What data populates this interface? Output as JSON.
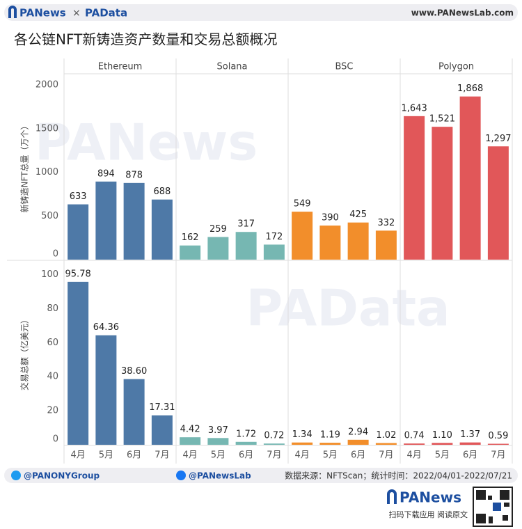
{
  "header": {
    "brand_left": "PANews",
    "times": "×",
    "brand_right": "PAData",
    "url": "www.PANewsLab.com"
  },
  "chart_data": {
    "type": "faceted-bar",
    "title": "各公链NFT新铸造资产数量和交易总额概况",
    "categories": [
      "4月",
      "5月",
      "6月",
      "7月"
    ],
    "facets": [
      {
        "name": "Ethereum",
        "color": "#4e79a7"
      },
      {
        "name": "Solana",
        "color": "#76b7b2"
      },
      {
        "name": "BSC",
        "color": "#f28e2b"
      },
      {
        "name": "Polygon",
        "color": "#e15759"
      }
    ],
    "rows": [
      {
        "y_label": "新铸造NFT总量（万个）",
        "ylim": [
          0,
          2120
        ],
        "yticks": [
          0,
          500,
          1000,
          1500,
          2000
        ],
        "values": [
          [
            633,
            894,
            878,
            688
          ],
          [
            162,
            259,
            317,
            172
          ],
          [
            549,
            390,
            425,
            332
          ],
          [
            1643,
            1521,
            1868,
            1297
          ]
        ],
        "value_labels": [
          [
            "633",
            "894",
            "878",
            "688"
          ],
          [
            "162",
            "259",
            "317",
            "172"
          ],
          [
            "549",
            "390",
            "425",
            "332"
          ],
          [
            "1,643",
            "1,521",
            "1,868",
            "1,297"
          ]
        ]
      },
      {
        "y_label": "交易总额（亿美元）",
        "ylim": [
          0,
          108
        ],
        "yticks": [
          0,
          20,
          40,
          60,
          80,
          100
        ],
        "values": [
          [
            95.78,
            64.36,
            38.6,
            17.31
          ],
          [
            4.42,
            3.97,
            1.72,
            0.72
          ],
          [
            1.34,
            1.19,
            2.94,
            1.02
          ],
          [
            0.74,
            1.1,
            1.37,
            0.59
          ]
        ],
        "value_labels": [
          [
            "95.78",
            "64.36",
            "38.60",
            "17.31"
          ],
          [
            "4.42",
            "3.97",
            "1.72",
            "0.72"
          ],
          [
            "1.34",
            "1.19",
            "2.94",
            "1.02"
          ],
          [
            "0.74",
            "1.10",
            "1.37",
            "0.59"
          ]
        ]
      }
    ],
    "watermarks": [
      "PANews",
      "PAData"
    ]
  },
  "footer": {
    "twitter": "@PANONYGroup",
    "facebook": "@PANewsLab",
    "source": "数据来源：NFTScan；统计时间：2022/04/01-2022/07/21",
    "brand": "PANews",
    "qr_caption": "扫码下载应用 阅读原文"
  }
}
